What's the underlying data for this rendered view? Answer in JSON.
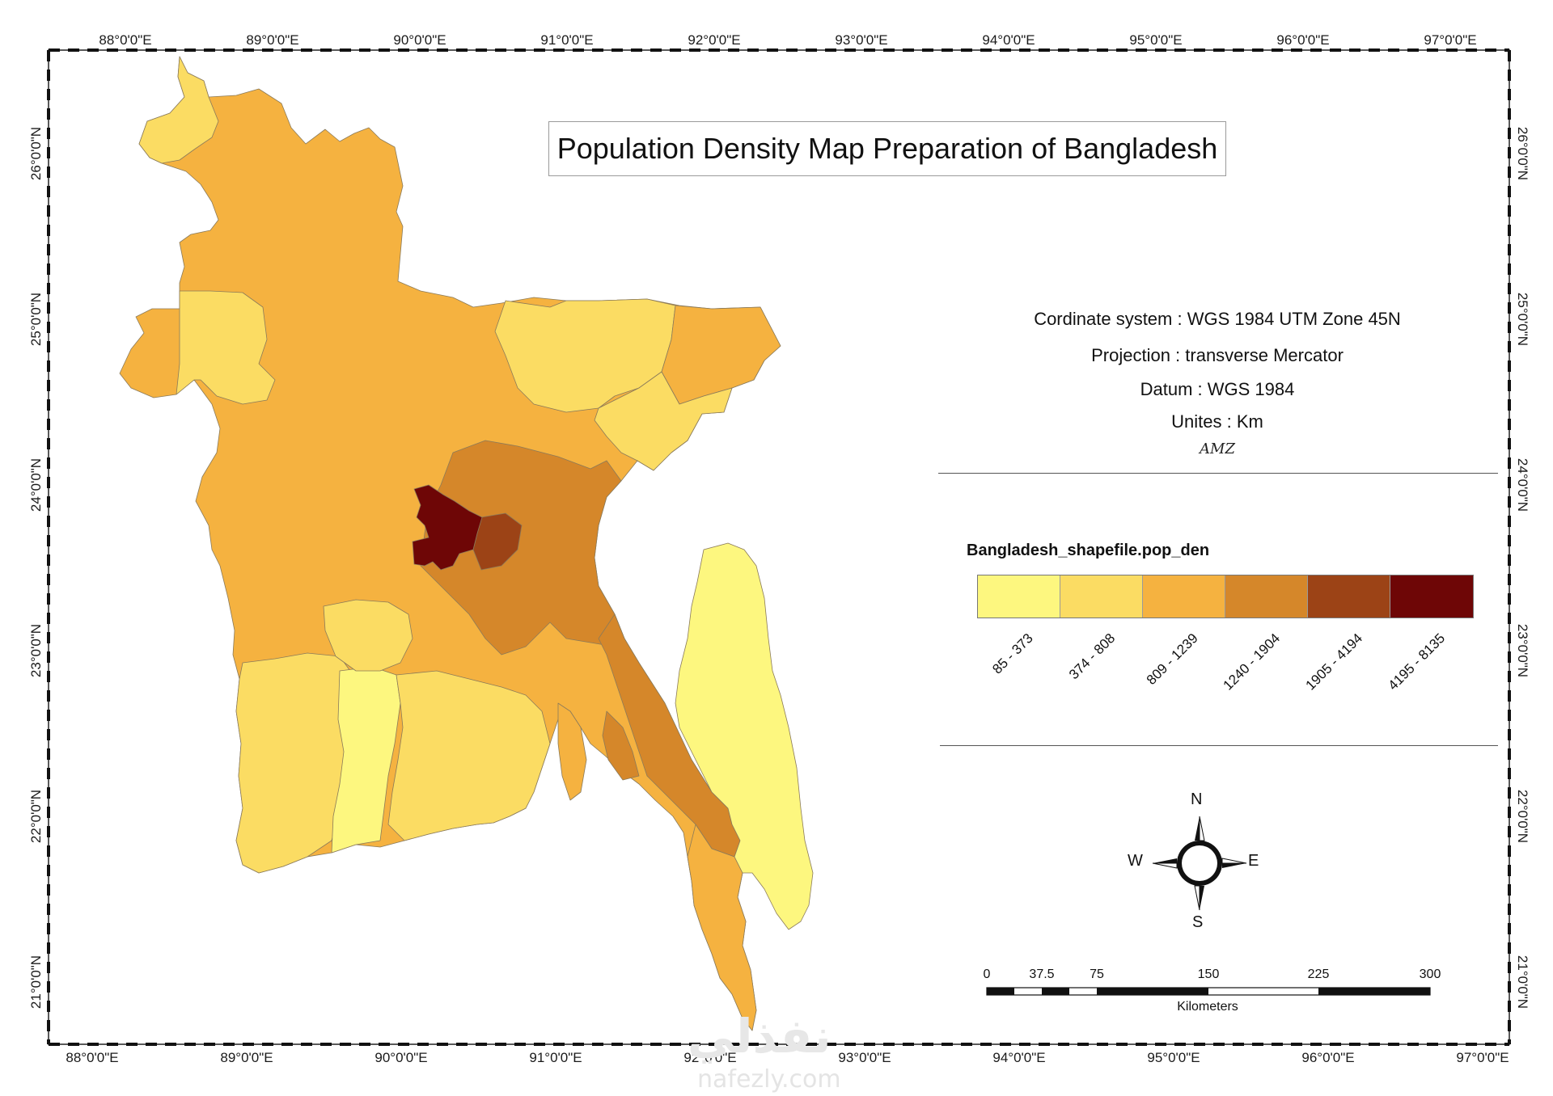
{
  "title": "Population Density Map Preparation of Bangladesh",
  "top_longitudes": [
    "88°0'0\"E",
    "89°0'0\"E",
    "90°0'0\"E",
    "91°0'0\"E",
    "92°0'0\"E",
    "93°0'0\"E",
    "94°0'0\"E",
    "95°0'0\"E",
    "96°0'0\"E",
    "97°0'0\"E"
  ],
  "bottom_longitudes": [
    "88°0'0\"E",
    "89°0'0\"E",
    "90°0'0\"E",
    "91°0'0\"E",
    "92°0'0\"E",
    "93°0'0\"E",
    "94°0'0\"E",
    "95°0'0\"E",
    "96°0'0\"E",
    "97°0'0\"E"
  ],
  "latitudes": [
    "26°0'0\"N",
    "25°0'0\"N",
    "24°0'0\"N",
    "23°0'0\"N",
    "22°0'0\"N",
    "21°0'0\"N"
  ],
  "info": {
    "coord_system": "Cordinate system : WGS 1984 UTM Zone 45N",
    "projection": "Projection : transverse Mercator",
    "datum": "Datum : WGS 1984",
    "units": "Unites : Km",
    "signature": "AMZ"
  },
  "legend": {
    "title": "Bangladesh_shapefile.pop_den",
    "classes": [
      {
        "label": "85 - 373",
        "color": "#fdf77f"
      },
      {
        "label": "374 - 808",
        "color": "#fbdc63"
      },
      {
        "label": "809 - 1239",
        "color": "#f5b240"
      },
      {
        "label": "1240 - 1904",
        "color": "#d5872a"
      },
      {
        "label": "1905 - 4194",
        "color": "#9c4316"
      },
      {
        "label": "4195 - 8135",
        "color": "#6e0606"
      }
    ]
  },
  "compass": {
    "n": "N",
    "s": "S",
    "e": "E",
    "w": "W"
  },
  "scale_bar": {
    "labels": [
      "0",
      "37.5",
      "75",
      "150",
      "225",
      "300"
    ],
    "unit": "Kilometers"
  },
  "watermark": {
    "arabic": "نفذلي",
    "url": "nafezly.com"
  }
}
